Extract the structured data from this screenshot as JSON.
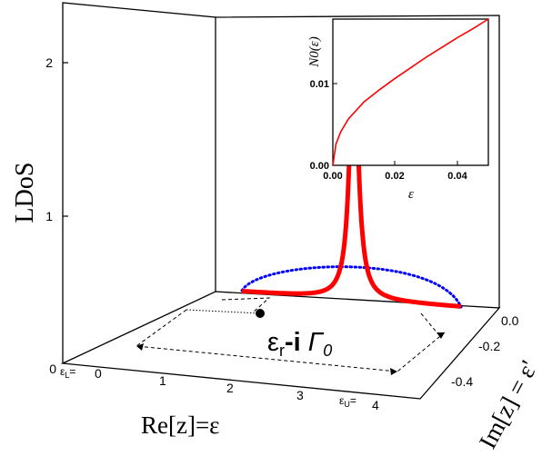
{
  "chart_data": {
    "type": "line",
    "projection": "3d",
    "zlabel": "LDoS",
    "xlabel": "Re[z]=ε",
    "ylabel": "Im[z] = ε'",
    "x_ticks": [
      "0",
      "1",
      "2",
      "3",
      "4"
    ],
    "y_ticks": [
      "0.0",
      "-0.2",
      "-0.4"
    ],
    "z_ticks": [
      "0",
      "1",
      "2"
    ],
    "x_range": [
      0,
      4.5
    ],
    "y_range": [
      -0.5,
      0
    ],
    "z_range": [
      0,
      2.3
    ],
    "band_edges": {
      "lower": "ε_L",
      "upper": "ε_U",
      "lower_x": 0,
      "upper_x": 4
    },
    "pole_label": "ε_r-i Γ_0",
    "colors": {
      "ldos": "#ff0000",
      "contour": "#0000ff",
      "axes": "#000000"
    },
    "ldos_peak": {
      "x": 2.3,
      "height": 2.3,
      "width": 0.1
    },
    "inset": {
      "type": "line",
      "xlabel": "ε",
      "ylabel": "N0(ε)",
      "x_ticks": [
        "0.00",
        "0.02",
        "0.04"
      ],
      "y_ticks": [
        "0.00",
        "0.01"
      ],
      "xlim": [
        0,
        0.05
      ],
      "ylim": [
        0,
        0.018
      ],
      "series": [
        {
          "x": [
            0,
            0.001,
            0.0025,
            0.005,
            0.01,
            0.015,
            0.02,
            0.025,
            0.03,
            0.035,
            0.04,
            0.045,
            0.05
          ],
          "y": [
            0,
            0.0026,
            0.0041,
            0.0057,
            0.0078,
            0.0093,
            0.0107,
            0.012,
            0.0133,
            0.0145,
            0.0157,
            0.0168,
            0.018
          ]
        }
      ]
    }
  }
}
